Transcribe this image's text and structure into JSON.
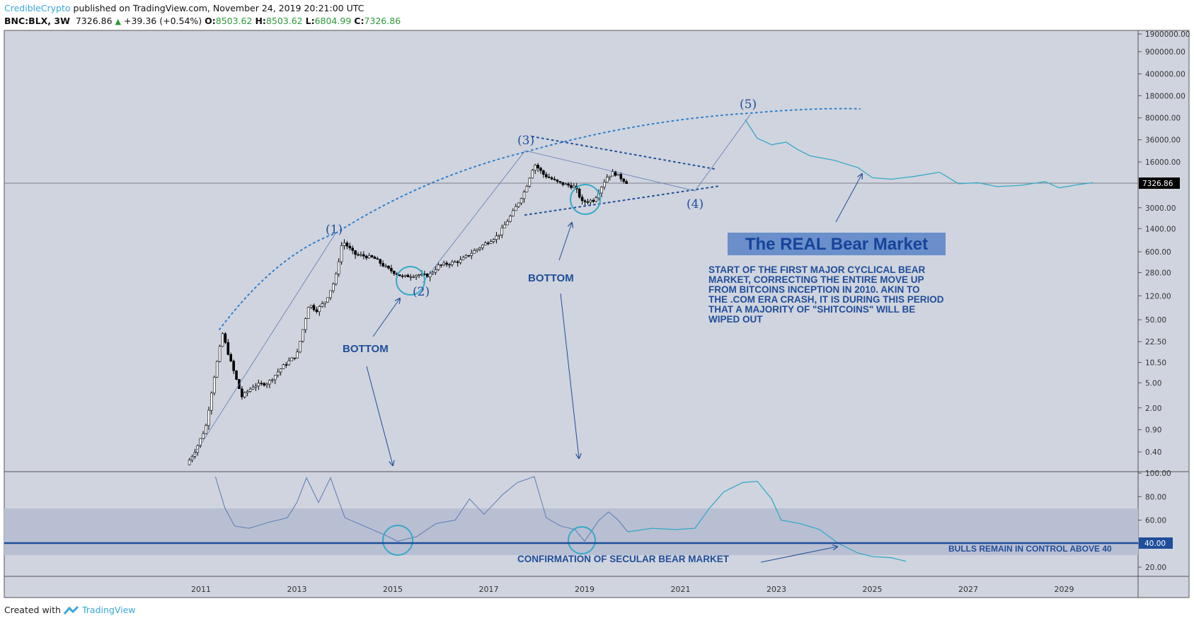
{
  "header": {
    "author": "CredibleCrypto",
    "published": "published on TradingView.com, November 24, 2019 20:21:00 UTC",
    "symbol": "BNC:BLX, 3W",
    "last": "7326.86",
    "change": "+39.36 (+0.54%)",
    "o_label": "O:",
    "o": "8503.62",
    "h_label": "H:",
    "h": "8503.62",
    "l_label": "L:",
    "l": "6804.99",
    "c_label": "C:",
    "c": "7326.86"
  },
  "footer": {
    "created_with": "Created with",
    "brand": "TradingView"
  },
  "colors": {
    "bg": "#d0d4de",
    "annot": "#1f4e9a",
    "proj": "#34a9c9",
    "rsi": "#5a7bb5",
    "up": "#2e9a3a"
  },
  "chart_data": {
    "type": "line",
    "price_axis": {
      "scale": "log",
      "ticks": [
        "1900000.00",
        "900000.00",
        "400000.00",
        "180000.00",
        "80000.00",
        "36000.00",
        "16000.00",
        "3000.00",
        "1400.00",
        "600.00",
        "280.00",
        "120.00",
        "50.00",
        "22.50",
        "10.50",
        "5.00",
        "2.00",
        "0.90",
        "0.40"
      ],
      "last_price_label": "7326.86"
    },
    "rsi_axis": {
      "ticks": [
        "100.00",
        "80.00",
        "60.00",
        "40.00",
        "20.00"
      ],
      "level_label": "40.00",
      "level": 40,
      "band": [
        30,
        70
      ]
    },
    "time_axis": [
      "2011",
      "2013",
      "2015",
      "2017",
      "2019",
      "2021",
      "2023",
      "2025",
      "2027",
      "2029"
    ],
    "price_history": [
      [
        2010.7,
        0.25
      ],
      [
        2010.9,
        0.45
      ],
      [
        2011.1,
        1
      ],
      [
        2011.25,
        5
      ],
      [
        2011.45,
        30
      ],
      [
        2011.6,
        12
      ],
      [
        2011.85,
        3
      ],
      [
        2012.1,
        4.5
      ],
      [
        2012.4,
        5
      ],
      [
        2012.7,
        9
      ],
      [
        2013.0,
        14
      ],
      [
        2013.25,
        90
      ],
      [
        2013.4,
        70
      ],
      [
        2013.6,
        100
      ],
      [
        2013.8,
        220
      ],
      [
        2013.95,
        900
      ],
      [
        2014.2,
        550
      ],
      [
        2014.6,
        480
      ],
      [
        2014.9,
        320
      ],
      [
        2015.2,
        240
      ],
      [
        2015.5,
        260
      ],
      [
        2015.75,
        250
      ],
      [
        2015.95,
        360
      ],
      [
        2016.4,
        430
      ],
      [
        2016.8,
        700
      ],
      [
        2017.2,
        1100
      ],
      [
        2017.5,
        2500
      ],
      [
        2017.75,
        5500
      ],
      [
        2017.95,
        15000
      ],
      [
        2018.15,
        10000
      ],
      [
        2018.45,
        7500
      ],
      [
        2018.8,
        6400
      ],
      [
        2018.95,
        3700
      ],
      [
        2019.2,
        4000
      ],
      [
        2019.45,
        9000
      ],
      [
        2019.6,
        11000
      ],
      [
        2019.9,
        7327
      ]
    ],
    "price_projection": [
      [
        2022.35,
        75000
      ],
      [
        2022.6,
        38000
      ],
      [
        2022.9,
        30000
      ],
      [
        2023.2,
        33000
      ],
      [
        2023.45,
        25000
      ],
      [
        2023.7,
        20000
      ],
      [
        2024.2,
        17000
      ],
      [
        2024.7,
        13000
      ],
      [
        2025.0,
        9000
      ],
      [
        2025.4,
        8500
      ],
      [
        2025.9,
        9500
      ],
      [
        2026.4,
        11000
      ],
      [
        2026.8,
        7200
      ],
      [
        2027.2,
        7500
      ],
      [
        2027.6,
        6500
      ],
      [
        2028.1,
        6800
      ],
      [
        2028.6,
        7800
      ],
      [
        2028.9,
        6200
      ],
      [
        2029.3,
        7000
      ],
      [
        2029.6,
        7500
      ]
    ],
    "rsi_history": [
      [
        2011.3,
        97
      ],
      [
        2011.5,
        70
      ],
      [
        2011.7,
        55
      ],
      [
        2012.0,
        53
      ],
      [
        2012.4,
        58
      ],
      [
        2012.8,
        62
      ],
      [
        2013.0,
        75
      ],
      [
        2013.2,
        96
      ],
      [
        2013.45,
        75
      ],
      [
        2013.7,
        96
      ],
      [
        2014.0,
        62
      ],
      [
        2014.4,
        55
      ],
      [
        2014.8,
        48
      ],
      [
        2015.1,
        42
      ],
      [
        2015.5,
        46
      ],
      [
        2015.9,
        57
      ],
      [
        2016.3,
        60
      ],
      [
        2016.6,
        78
      ],
      [
        2016.9,
        65
      ],
      [
        2017.3,
        82
      ],
      [
        2017.6,
        92
      ],
      [
        2017.95,
        97
      ],
      [
        2018.2,
        62
      ],
      [
        2018.5,
        55
      ],
      [
        2018.8,
        52
      ],
      [
        2019.0,
        42
      ],
      [
        2019.3,
        60
      ],
      [
        2019.5,
        67
      ],
      [
        2019.7,
        60
      ],
      [
        2019.9,
        50
      ]
    ],
    "rsi_projection": [
      [
        2019.9,
        50
      ],
      [
        2020.4,
        53
      ],
      [
        2020.9,
        52
      ],
      [
        2021.3,
        53
      ],
      [
        2021.6,
        70
      ],
      [
        2021.9,
        84
      ],
      [
        2022.3,
        92
      ],
      [
        2022.6,
        93
      ],
      [
        2022.9,
        78
      ],
      [
        2023.1,
        60
      ],
      [
        2023.5,
        57
      ],
      [
        2023.9,
        52
      ],
      [
        2024.3,
        40
      ],
      [
        2024.7,
        32
      ],
      [
        2025.0,
        29
      ],
      [
        2025.4,
        28
      ],
      [
        2025.7,
        25
      ]
    ],
    "annotations": {
      "wave1": "(1)",
      "wave2": "(2)",
      "wave3": "(3)",
      "wave4": "(4)",
      "wave5": "(5)",
      "bottom1": "BOTTOM",
      "bottom2": "BOTTOM",
      "title": "The REAL Bear Market",
      "paragraph": [
        "START OF THE FIRST MAJOR CYCLICAL BEAR",
        "MARKET, CORRECTING THE ENTIRE MOVE UP",
        "FROM BITCOINS INCEPTION IN 2010. AKIN TO",
        "THE .COM ERA CRASH, IT IS DURING THIS PERIOD",
        "THAT A MAJORITY OF \"SHITCOINS\" WILL BE",
        "WIPED OUT"
      ],
      "confirmation": "CONFIRMATION OF SECULAR BEAR MARKET",
      "bulls": "BULLS REMAIN IN CONTROL ABOVE 40"
    }
  }
}
